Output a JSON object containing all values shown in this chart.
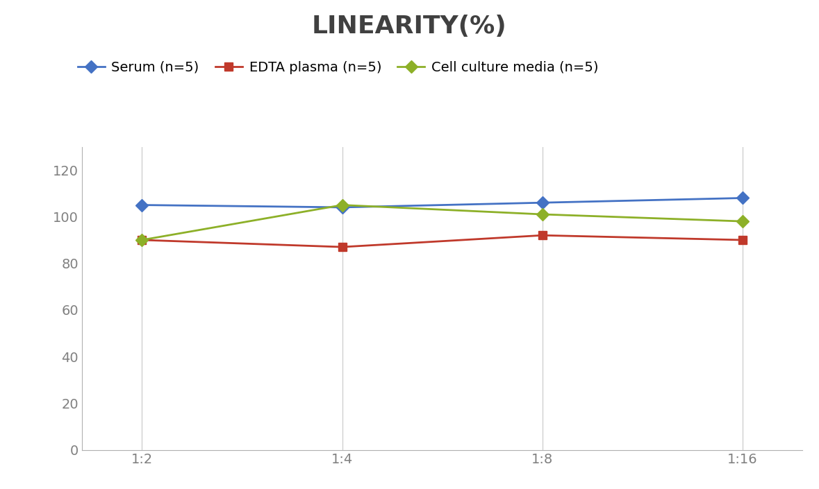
{
  "title": "LINEARITY(%)",
  "title_fontsize": 26,
  "title_fontweight": "bold",
  "title_color": "#404040",
  "x_labels": [
    "1:2",
    "1:4",
    "1:8",
    "1:16"
  ],
  "x_positions": [
    0,
    1,
    2,
    3
  ],
  "series": [
    {
      "label": "Serum (n=5)",
      "values": [
        105,
        104,
        106,
        108
      ],
      "color": "#4472C4",
      "marker": "D",
      "markersize": 9,
      "linewidth": 2
    },
    {
      "label": "EDTA plasma (n=5)",
      "values": [
        90,
        87,
        92,
        90
      ],
      "color": "#C0392B",
      "marker": "s",
      "markersize": 9,
      "linewidth": 2
    },
    {
      "label": "Cell culture media (n=5)",
      "values": [
        90,
        105,
        101,
        98
      ],
      "color": "#8DB028",
      "marker": "D",
      "markersize": 9,
      "linewidth": 2
    }
  ],
  "ylim": [
    0,
    130
  ],
  "yticks": [
    0,
    20,
    40,
    60,
    80,
    100,
    120
  ],
  "background_color": "#ffffff",
  "grid_color": "#d0d0d0",
  "legend_fontsize": 14,
  "tick_fontsize": 14,
  "tick_color": "#808080"
}
